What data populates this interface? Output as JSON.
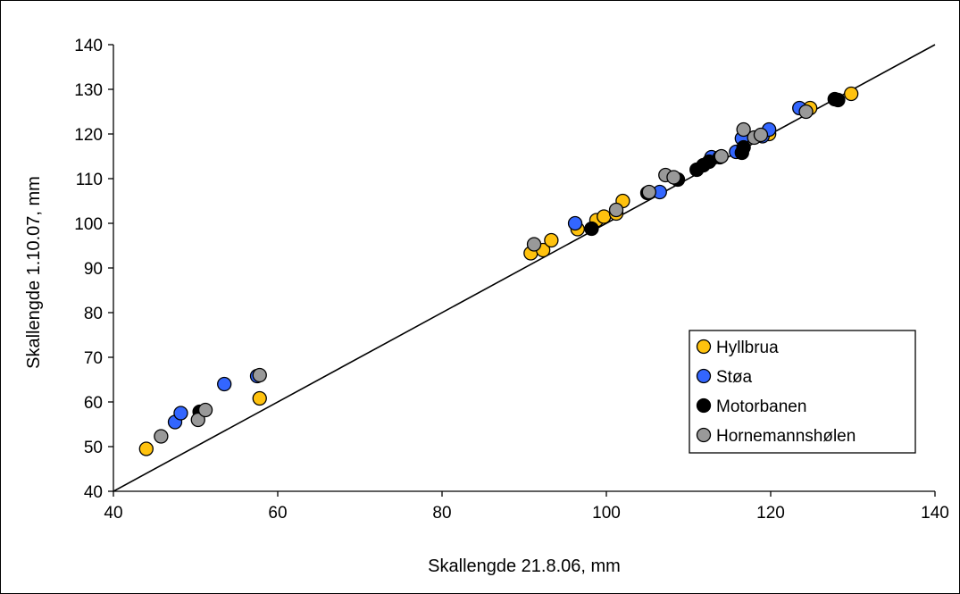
{
  "chart_data": {
    "type": "scatter",
    "xlabel": "Skallengde 21.8.06, mm",
    "ylabel": "Skallengde 1.10.07, mm",
    "xlim": [
      40,
      140
    ],
    "ylim": [
      40,
      140
    ],
    "xticks": [
      40,
      60,
      80,
      100,
      120,
      140
    ],
    "yticks": [
      40,
      50,
      60,
      70,
      80,
      90,
      100,
      110,
      120,
      130,
      140
    ],
    "grid": false,
    "legend_position": "right",
    "reference_line": {
      "from": [
        40,
        40
      ],
      "to": [
        140,
        140
      ]
    },
    "series": [
      {
        "name": "Hyllbrua",
        "color": "#ffc20e",
        "points": [
          [
            44,
            49.5
          ],
          [
            57.8,
            60.8
          ],
          [
            90.8,
            93.3
          ],
          [
            92.3,
            94
          ],
          [
            93.3,
            96.2
          ],
          [
            96.5,
            98.7
          ],
          [
            98.8,
            100.7
          ],
          [
            99.7,
            101.5
          ],
          [
            101.2,
            102.2
          ],
          [
            102,
            105
          ],
          [
            119.8,
            120
          ],
          [
            124.8,
            125.8
          ],
          [
            129.8,
            129
          ]
        ]
      },
      {
        "name": "Støa",
        "color": "#3366ff",
        "points": [
          [
            47.5,
            55.5
          ],
          [
            48.2,
            57.5
          ],
          [
            53.5,
            64
          ],
          [
            57.5,
            65.8
          ],
          [
            96.2,
            100
          ],
          [
            106.5,
            107
          ],
          [
            112.8,
            114.8
          ],
          [
            115.8,
            116
          ],
          [
            116.5,
            119
          ],
          [
            119,
            119.5
          ],
          [
            119.8,
            121
          ],
          [
            123.5,
            125.8
          ]
        ]
      },
      {
        "name": "Motorbanen",
        "color": "#000000",
        "points": [
          [
            50.5,
            57.8
          ],
          [
            98.2,
            98.8
          ],
          [
            105,
            106.8
          ],
          [
            108.7,
            109.8
          ],
          [
            111,
            112
          ],
          [
            111.8,
            113
          ],
          [
            112.5,
            113.8
          ],
          [
            113.8,
            114.8
          ],
          [
            116.5,
            115.8
          ],
          [
            116.7,
            117
          ],
          [
            127.8,
            127.8
          ],
          [
            128.2,
            127.6
          ]
        ]
      },
      {
        "name": "Hornemannshølen",
        "color": "#999999",
        "points": [
          [
            45.8,
            52.3
          ],
          [
            50.3,
            56
          ],
          [
            51.2,
            58.2
          ],
          [
            57.8,
            66
          ],
          [
            91.2,
            95.3
          ],
          [
            101.2,
            103
          ],
          [
            105.2,
            107
          ],
          [
            107.2,
            110.8
          ],
          [
            108.2,
            110.3
          ],
          [
            114,
            115
          ],
          [
            116.7,
            121
          ],
          [
            118,
            119.2
          ],
          [
            118.8,
            119.8
          ],
          [
            124.3,
            125
          ]
        ]
      }
    ]
  }
}
